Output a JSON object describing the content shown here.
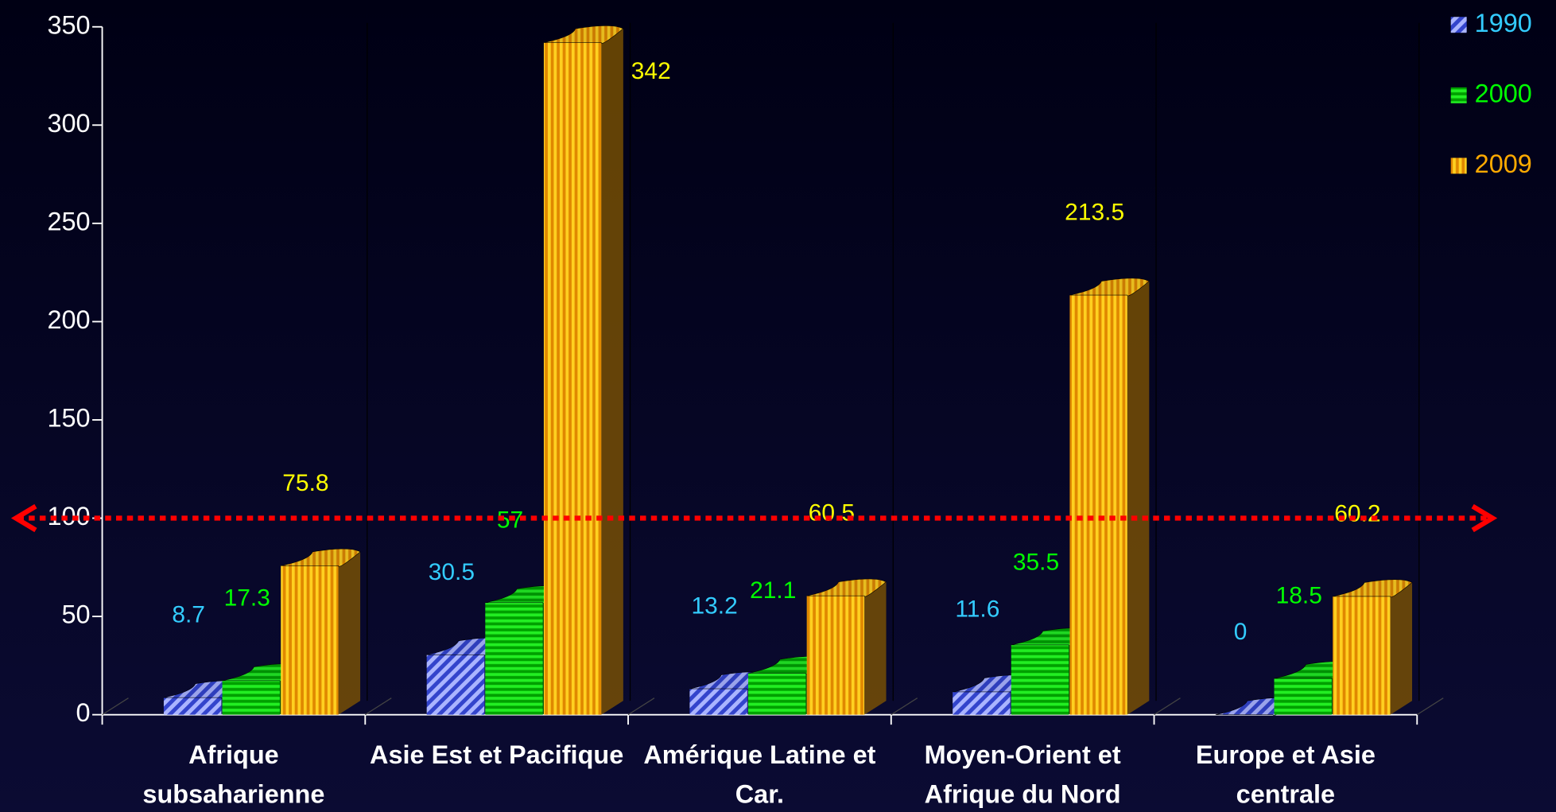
{
  "chart_data": {
    "type": "bar3d",
    "categories": [
      "Afrique subsaharienne",
      "Asie Est et Pacifique",
      "Amérique Latine et Car.",
      "Moyen-Orient et Afrique du Nord",
      "Europe et Asie centrale"
    ],
    "series": [
      {
        "name": "1990",
        "color": "#5c6cff",
        "label_color": "#33ccff",
        "values": [
          8.7,
          30.5,
          13.2,
          11.6,
          0
        ]
      },
      {
        "name": "2000",
        "color": "#00c800",
        "label_color": "#00ff00",
        "values": [
          17.3,
          57,
          21.1,
          35.5,
          18.5
        ]
      },
      {
        "name": "2009",
        "color": "#ffaa00",
        "label_color": "#ffff00",
        "values": [
          75.8,
          342,
          60.5,
          213.5,
          60.2
        ]
      }
    ],
    "ylim": [
      0,
      350
    ],
    "yticks": [
      0,
      50,
      100,
      150,
      200,
      250,
      300,
      350
    ],
    "reference_line": 100,
    "reference_color": "#ff0000",
    "legend": "top-right"
  }
}
